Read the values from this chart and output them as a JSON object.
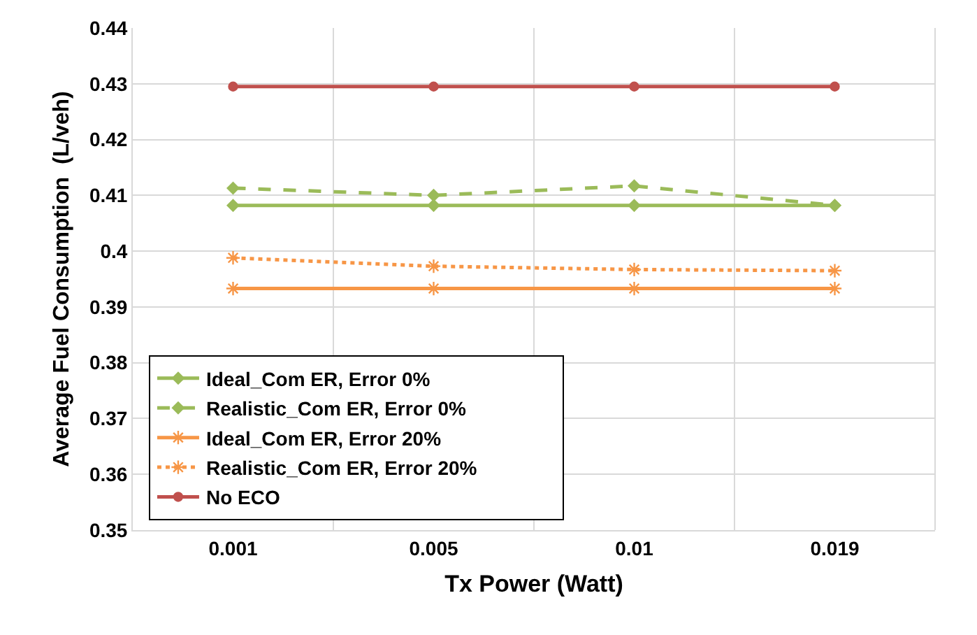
{
  "chart_data": {
    "type": "line",
    "xlabel": "Tx Power (Watt)",
    "ylabel": "Average Fuel Consumption  (L/veh)",
    "categories": [
      "0.001",
      "0.005",
      "0.01",
      "0.019"
    ],
    "series": [
      {
        "name": "Ideal_Com ER, Error 0%",
        "color": "#9bbb59",
        "marker": "diamond",
        "line_style": "solid",
        "values": [
          0.4082,
          0.4082,
          0.4082,
          0.4082
        ]
      },
      {
        "name": "Realistic_Com ER, Error 0%",
        "color": "#9bbb59",
        "marker": "diamond",
        "line_style": "dashed",
        "values": [
          0.4113,
          0.41,
          0.4117,
          0.4082
        ]
      },
      {
        "name": "Ideal_Com ER, Error 20%",
        "color": "#f79646",
        "marker": "cross",
        "line_style": "solid",
        "values": [
          0.3933,
          0.3933,
          0.3933,
          0.3933
        ]
      },
      {
        "name": "Realistic_Com ER, Error 20%",
        "color": "#f79646",
        "marker": "cross",
        "line_style": "dotted",
        "values": [
          0.3988,
          0.3973,
          0.3967,
          0.3965
        ]
      },
      {
        "name": "No ECO",
        "color": "#c0504d",
        "marker": "circle",
        "line_style": "solid",
        "values": [
          0.4295,
          0.4295,
          0.4295,
          0.4295
        ]
      }
    ],
    "ylim": [
      0.35,
      0.44
    ],
    "yticks": [
      0.35,
      0.36,
      0.37,
      0.38,
      0.39,
      0.4,
      0.41,
      0.42,
      0.43,
      0.44
    ],
    "grid": true,
    "legend": "bottom"
  }
}
